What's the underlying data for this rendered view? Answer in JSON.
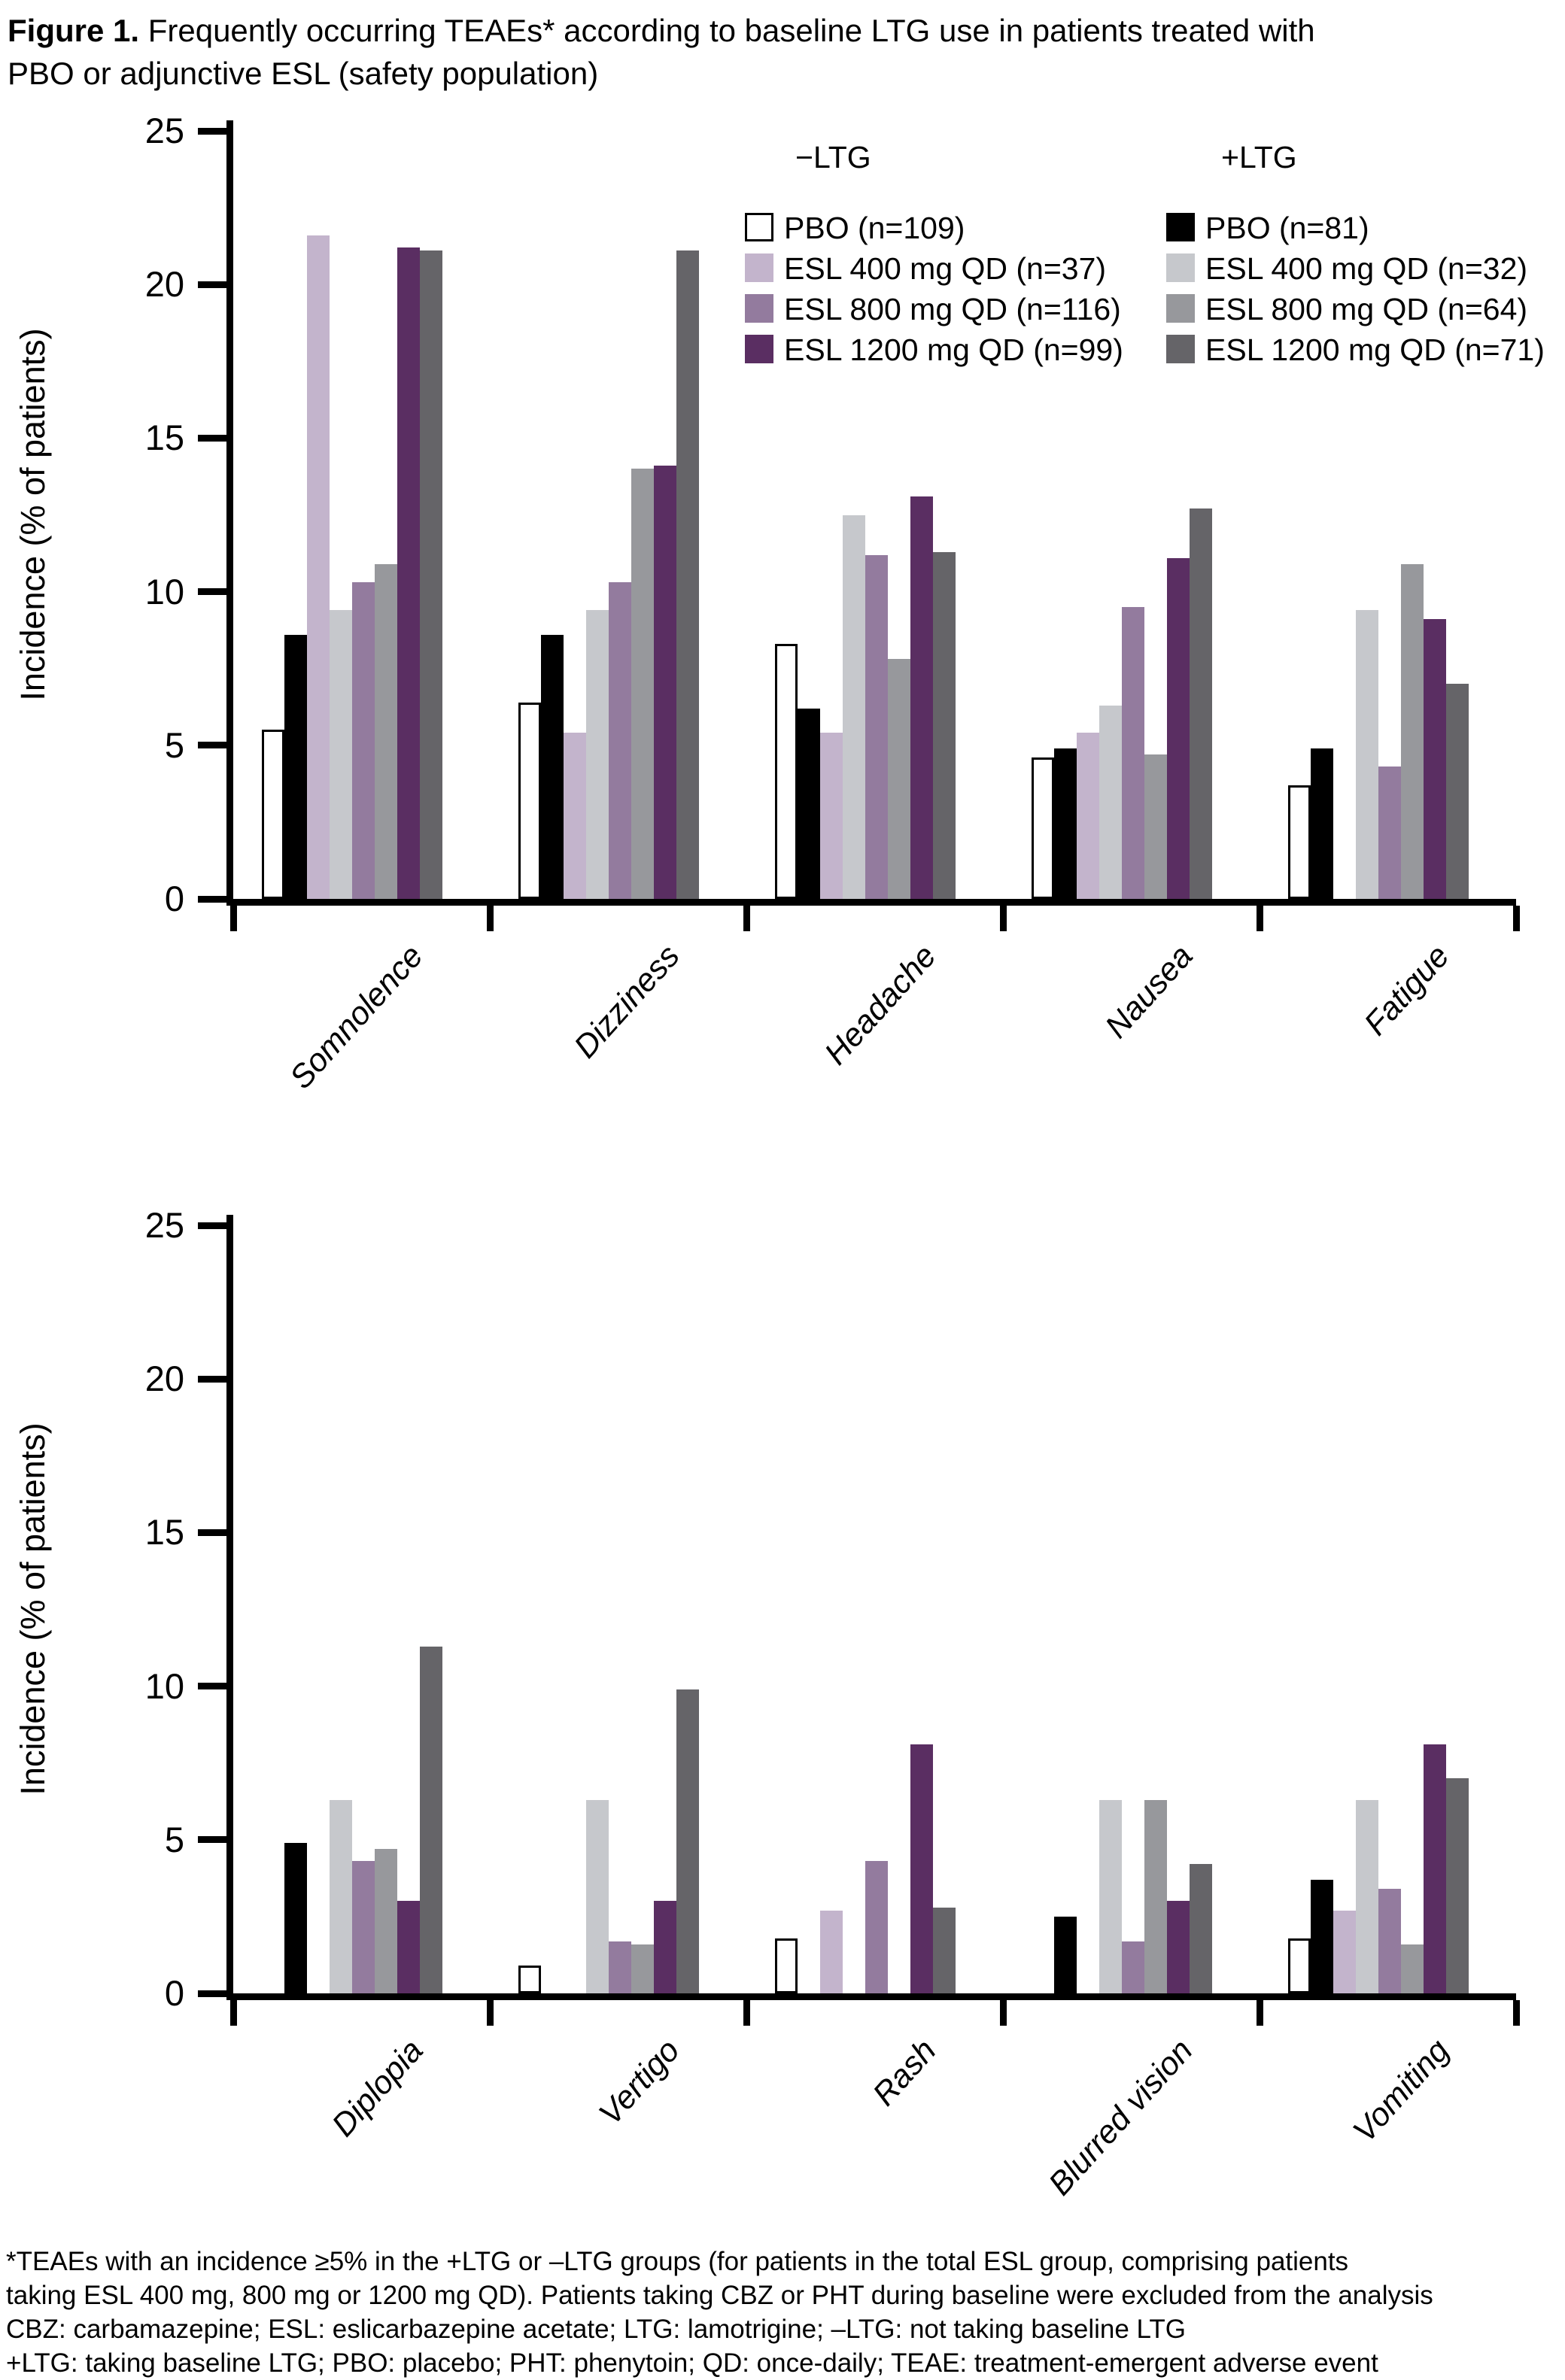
{
  "figure": {
    "title_bold": "Figure 1.",
    "title_line1_rest": " Frequently occurring TEAEs* according to baseline LTG use in patients treated with",
    "title_line2": "PBO or adjunctive ESL (safety population)"
  },
  "legend": {
    "groups": [
      {
        "header": "−LTG",
        "entries": [
          {
            "label": "PBO (n=109)",
            "color": "#ffffff",
            "outlined": true
          },
          {
            "label": "ESL 400 mg QD (n=37)",
            "color": "#c3b4cc",
            "outlined": false
          },
          {
            "label": "ESL 800 mg QD (n=116)",
            "color": "#937b9e",
            "outlined": false
          },
          {
            "label": "ESL 1200 mg QD (n=99)",
            "color": "#5a2e62",
            "outlined": false
          }
        ]
      },
      {
        "header": "+LTG",
        "entries": [
          {
            "label": "PBO (n=81)",
            "color": "#000000",
            "outlined": false
          },
          {
            "label": "ESL 400 mg QD (n=32)",
            "color": "#c6c8cc",
            "outlined": false
          },
          {
            "label": "ESL 800 mg QD (n=64)",
            "color": "#97989c",
            "outlined": false
          },
          {
            "label": "ESL 1200 mg QD (n=71)",
            "color": "#656468",
            "outlined": false
          }
        ]
      }
    ]
  },
  "chart_data": [
    {
      "type": "bar",
      "title": "",
      "xlabel": "",
      "ylabel": "Incidence (% of patients)",
      "ylim": [
        0,
        25
      ],
      "yticks": [
        0,
        5,
        10,
        15,
        20,
        25
      ],
      "grid": false,
      "legend_position": "top-right",
      "categories": [
        "Somnolence",
        "Dizziness",
        "Headache",
        "Nausea",
        "Fatigue"
      ],
      "series": [
        {
          "name": "PBO (n=109)",
          "group": "−LTG",
          "color": "#ffffff",
          "outlined": true,
          "values": [
            5.5,
            6.4,
            8.3,
            4.6,
            3.7
          ]
        },
        {
          "name": "PBO (n=81)",
          "group": "+LTG",
          "color": "#000000",
          "outlined": false,
          "values": [
            8.6,
            8.6,
            6.2,
            4.9,
            4.9
          ]
        },
        {
          "name": "ESL 400 mg QD (n=37)",
          "group": "−LTG",
          "color": "#c3b4cc",
          "outlined": false,
          "values": [
            21.6,
            5.4,
            5.4,
            5.4,
            0
          ]
        },
        {
          "name": "ESL 400 mg QD (n=32)",
          "group": "+LTG",
          "color": "#c6c8cc",
          "outlined": false,
          "values": [
            9.4,
            9.4,
            12.5,
            6.3,
            9.4
          ]
        },
        {
          "name": "ESL 800 mg QD (n=116)",
          "group": "−LTG",
          "color": "#937b9e",
          "outlined": false,
          "values": [
            10.3,
            10.3,
            11.2,
            9.5,
            4.3
          ]
        },
        {
          "name": "ESL 800 mg QD (n=64)",
          "group": "+LTG",
          "color": "#97989c",
          "outlined": false,
          "values": [
            10.9,
            14.0,
            7.8,
            4.7,
            10.9
          ]
        },
        {
          "name": "ESL 1200 mg QD (n=99)",
          "group": "−LTG",
          "color": "#5a2e62",
          "outlined": false,
          "values": [
            21.2,
            14.1,
            13.1,
            11.1,
            9.1
          ]
        },
        {
          "name": "ESL 1200 mg QD (n=71)",
          "group": "+LTG",
          "color": "#656468",
          "outlined": false,
          "values": [
            21.1,
            21.1,
            11.3,
            12.7,
            7.0
          ]
        }
      ]
    },
    {
      "type": "bar",
      "title": "",
      "xlabel": "",
      "ylabel": "Incidence (% of patients)",
      "ylim": [
        0,
        25
      ],
      "yticks": [
        0,
        5,
        10,
        15,
        20,
        25
      ],
      "grid": false,
      "legend_position": "none",
      "categories": [
        "Diplopia",
        "Vertigo",
        "Rash",
        "Blurred vision",
        "Vomiting"
      ],
      "series": [
        {
          "name": "PBO (n=109)",
          "group": "−LTG",
          "color": "#ffffff",
          "outlined": true,
          "values": [
            0,
            0.9,
            1.8,
            0,
            1.8
          ]
        },
        {
          "name": "PBO (n=81)",
          "group": "+LTG",
          "color": "#000000",
          "outlined": false,
          "values": [
            4.9,
            0,
            0,
            2.5,
            3.7
          ]
        },
        {
          "name": "ESL 400 mg QD (n=37)",
          "group": "−LTG",
          "color": "#c3b4cc",
          "outlined": false,
          "values": [
            0,
            0,
            2.7,
            0,
            2.7
          ]
        },
        {
          "name": "ESL 400 mg QD (n=32)",
          "group": "+LTG",
          "color": "#c6c8cc",
          "outlined": false,
          "values": [
            6.3,
            6.3,
            0,
            6.3,
            6.3
          ]
        },
        {
          "name": "ESL 800 mg QD (n=116)",
          "group": "−LTG",
          "color": "#937b9e",
          "outlined": false,
          "values": [
            4.3,
            1.7,
            4.3,
            1.7,
            3.4
          ]
        },
        {
          "name": "ESL 800 mg QD (n=64)",
          "group": "+LTG",
          "color": "#97989c",
          "outlined": false,
          "values": [
            4.7,
            1.6,
            0,
            6.3,
            1.6
          ]
        },
        {
          "name": "ESL 1200 mg QD (n=99)",
          "group": "−LTG",
          "color": "#5a2e62",
          "outlined": false,
          "values": [
            3.0,
            3.0,
            8.1,
            3.0,
            8.1
          ]
        },
        {
          "name": "ESL 1200 mg QD (n=71)",
          "group": "+LTG",
          "color": "#656468",
          "outlined": false,
          "values": [
            11.3,
            9.9,
            2.8,
            4.2,
            7.0
          ]
        }
      ]
    }
  ],
  "footnote": {
    "lines": [
      "*TEAEs with an incidence ≥5% in the +LTG or –LTG groups (for patients in the total ESL group, comprising patients",
      "taking ESL 400 mg, 800 mg or 1200 mg QD). Patients taking CBZ or PHT during baseline were excluded from the analysis",
      "CBZ: carbamazepine; ESL: eslicarbazepine acetate; LTG: lamotrigine; –LTG: not taking baseline LTG",
      "+LTG: taking baseline LTG; PBO: placebo; PHT: phenytoin; QD: once-daily; TEAE: treatment-emergent adverse event"
    ]
  }
}
